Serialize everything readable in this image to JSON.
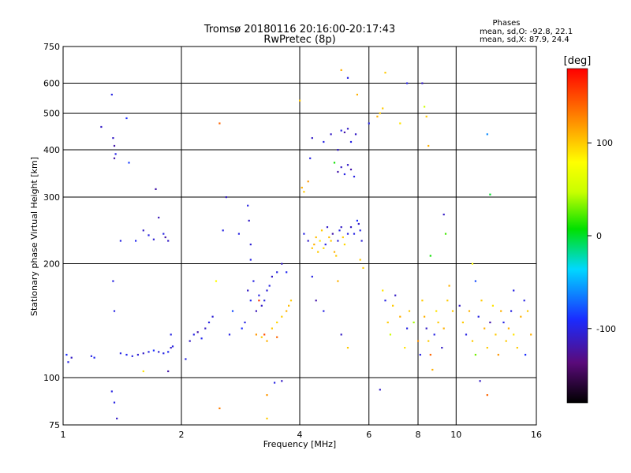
{
  "chart_data": {
    "type": "scatter",
    "title": "Tromsø 20180116 20:16:00-20:17:43",
    "subtitle": "RwPretec (8p)",
    "xlabel": "Frequency [MHz]",
    "ylabel": "Stationary phase Virtual Height [km]",
    "x_scale": "log",
    "y_scale": "log",
    "xlim": [
      1,
      16
    ],
    "ylim": [
      75,
      750
    ],
    "x_ticks": [
      "1",
      "2",
      "4",
      "6",
      "8",
      "10",
      "16"
    ],
    "y_ticks": [
      "75",
      "100",
      "200",
      "300",
      "400",
      "500",
      "600",
      "750"
    ],
    "grid": true,
    "phases_box": {
      "heading": "Phases",
      "line_o": "mean, sd,O: -92.8, 22.1",
      "line_x": "mean, sd,X:  87.9, 24.4"
    },
    "colorbar": {
      "label": "[deg]",
      "range": [
        -180,
        180
      ],
      "ticks": [
        "100",
        "0",
        "-100"
      ]
    },
    "point_color_encoding": "phase [deg]",
    "points": [
      [
        1.02,
        115,
        -90
      ],
      [
        1.03,
        110,
        -100
      ],
      [
        1.05,
        113,
        -110
      ],
      [
        1.18,
        114,
        -100
      ],
      [
        1.2,
        113,
        -95
      ],
      [
        1.25,
        460,
        -110
      ],
      [
        1.33,
        560,
        -100
      ],
      [
        1.34,
        430,
        -110
      ],
      [
        1.35,
        410,
        -120
      ],
      [
        1.36,
        390,
        -100
      ],
      [
        1.35,
        380,
        -120
      ],
      [
        1.4,
        230,
        -100
      ],
      [
        1.45,
        485,
        -90
      ],
      [
        1.47,
        370,
        -85
      ],
      [
        1.53,
        230,
        -95
      ],
      [
        1.6,
        245,
        -110
      ],
      [
        1.65,
        238,
        -100
      ],
      [
        1.7,
        232,
        -105
      ],
      [
        1.75,
        265,
        -115
      ],
      [
        1.8,
        240,
        -100
      ],
      [
        1.82,
        235,
        -120
      ],
      [
        1.85,
        230,
        -110
      ],
      [
        1.72,
        315,
        -120
      ],
      [
        1.34,
        180,
        -100
      ],
      [
        1.35,
        150,
        -100
      ],
      [
        1.33,
        92,
        -100
      ],
      [
        1.35,
        86,
        -100
      ],
      [
        1.37,
        78,
        -110
      ],
      [
        1.4,
        116,
        -100
      ],
      [
        1.45,
        115,
        -95
      ],
      [
        1.5,
        114,
        -100
      ],
      [
        1.55,
        115,
        -105
      ],
      [
        1.6,
        116,
        -110
      ],
      [
        1.65,
        117,
        -100
      ],
      [
        1.7,
        118,
        -90
      ],
      [
        1.75,
        117,
        -105
      ],
      [
        1.8,
        116,
        -100
      ],
      [
        1.85,
        117,
        -95
      ],
      [
        1.88,
        120,
        -110
      ],
      [
        1.9,
        121,
        -100
      ],
      [
        1.6,
        104,
        90
      ],
      [
        1.85,
        104,
        -120
      ],
      [
        1.88,
        130,
        -100
      ],
      [
        2.05,
        112,
        -100
      ],
      [
        2.1,
        125,
        -110
      ],
      [
        2.15,
        130,
        -100
      ],
      [
        2.2,
        132,
        -120
      ],
      [
        2.25,
        127,
        -95
      ],
      [
        2.3,
        135,
        -110
      ],
      [
        2.35,
        140,
        -100
      ],
      [
        2.4,
        145,
        -105
      ],
      [
        2.45,
        180,
        80
      ],
      [
        2.5,
        470,
        140
      ],
      [
        2.55,
        245,
        -100
      ],
      [
        2.6,
        300,
        -110
      ],
      [
        2.65,
        130,
        -100
      ],
      [
        2.7,
        150,
        -80
      ],
      [
        2.8,
        240,
        -100
      ],
      [
        2.85,
        135,
        -90
      ],
      [
        2.9,
        140,
        -100
      ],
      [
        2.95,
        170,
        -110
      ],
      [
        3.0,
        160,
        -95
      ],
      [
        3.05,
        180,
        -100
      ],
      [
        3.1,
        150,
        -115
      ],
      [
        3.15,
        165,
        -100
      ],
      [
        3.2,
        155,
        -110
      ],
      [
        3.25,
        160,
        -100
      ],
      [
        3.3,
        170,
        -105
      ],
      [
        3.35,
        175,
        -100
      ],
      [
        3.4,
        185,
        -110
      ],
      [
        3.5,
        190,
        -100
      ],
      [
        3.6,
        200,
        -110
      ],
      [
        3.7,
        190,
        -95
      ],
      [
        2.95,
        285,
        -100
      ],
      [
        2.97,
        260,
        -110
      ],
      [
        3.0,
        225,
        -105
      ],
      [
        3.0,
        205,
        -100
      ],
      [
        3.1,
        130,
        120
      ],
      [
        3.2,
        128,
        100
      ],
      [
        3.3,
        125,
        110
      ],
      [
        3.4,
        135,
        100
      ],
      [
        3.5,
        140,
        95
      ],
      [
        3.6,
        145,
        100
      ],
      [
        3.7,
        150,
        110
      ],
      [
        3.75,
        155,
        105
      ],
      [
        3.8,
        160,
        100
      ],
      [
        3.15,
        160,
        160
      ],
      [
        3.3,
        90,
        120
      ],
      [
        3.45,
        97,
        -100
      ],
      [
        3.6,
        98,
        -110
      ],
      [
        3.3,
        78,
        100
      ],
      [
        2.5,
        83,
        130
      ],
      [
        3.25,
        130,
        150
      ],
      [
        3.5,
        128,
        140
      ],
      [
        4.0,
        540,
        100
      ],
      [
        4.05,
        318,
        110
      ],
      [
        4.1,
        310,
        100
      ],
      [
        4.2,
        330,
        120
      ],
      [
        4.25,
        380,
        -100
      ],
      [
        4.3,
        430,
        -110
      ],
      [
        4.1,
        240,
        -100
      ],
      [
        4.2,
        230,
        -110
      ],
      [
        4.3,
        220,
        100
      ],
      [
        4.35,
        225,
        110
      ],
      [
        4.4,
        235,
        105
      ],
      [
        4.45,
        215,
        100
      ],
      [
        4.5,
        230,
        90
      ],
      [
        4.55,
        245,
        100
      ],
      [
        4.6,
        220,
        95
      ],
      [
        4.65,
        225,
        -100
      ],
      [
        4.7,
        250,
        -110
      ],
      [
        4.75,
        235,
        105
      ],
      [
        4.8,
        230,
        100
      ],
      [
        4.85,
        240,
        -120
      ],
      [
        4.9,
        215,
        110
      ],
      [
        4.95,
        210,
        100
      ],
      [
        5.0,
        230,
        -105
      ],
      [
        5.05,
        245,
        -100
      ],
      [
        5.1,
        250,
        -110
      ],
      [
        5.15,
        235,
        100
      ],
      [
        5.2,
        225,
        95
      ],
      [
        5.3,
        240,
        -100
      ],
      [
        5.4,
        250,
        -110
      ],
      [
        5.5,
        240,
        -100
      ],
      [
        5.6,
        260,
        -90
      ],
      [
        5.65,
        255,
        -110
      ],
      [
        5.7,
        245,
        -100
      ],
      [
        5.75,
        230,
        -105
      ],
      [
        5.8,
        195,
        100
      ],
      [
        5.7,
        205,
        100
      ],
      [
        4.6,
        420,
        -100
      ],
      [
        4.8,
        440,
        -110
      ],
      [
        5.0,
        400,
        -110
      ],
      [
        5.1,
        450,
        -100
      ],
      [
        5.2,
        445,
        -120
      ],
      [
        5.3,
        455,
        -110
      ],
      [
        5.4,
        420,
        -100
      ],
      [
        5.55,
        440,
        -110
      ],
      [
        5.0,
        350,
        -120
      ],
      [
        5.1,
        360,
        -110
      ],
      [
        5.2,
        345,
        -100
      ],
      [
        5.3,
        365,
        -110
      ],
      [
        5.4,
        355,
        -120
      ],
      [
        5.5,
        340,
        -100
      ],
      [
        4.9,
        370,
        10
      ],
      [
        5.3,
        620,
        -100
      ],
      [
        5.1,
        650,
        110
      ],
      [
        5.6,
        560,
        110
      ],
      [
        4.3,
        185,
        -100
      ],
      [
        4.4,
        160,
        -120
      ],
      [
        4.6,
        150,
        -100
      ],
      [
        5.1,
        130,
        -110
      ],
      [
        5.3,
        120,
        100
      ],
      [
        5.0,
        180,
        110
      ],
      [
        6.0,
        470,
        -100
      ],
      [
        6.3,
        490,
        110
      ],
      [
        6.4,
        500,
        100
      ],
      [
        6.5,
        515,
        100
      ],
      [
        6.6,
        640,
        100
      ],
      [
        7.2,
        470,
        90
      ],
      [
        7.5,
        600,
        -100
      ],
      [
        8.2,
        600,
        -110
      ],
      [
        8.3,
        520,
        50
      ],
      [
        8.4,
        490,
        100
      ],
      [
        8.5,
        410,
        110
      ],
      [
        9.3,
        270,
        -110
      ],
      [
        9.4,
        240,
        20
      ],
      [
        8.6,
        210,
        10
      ],
      [
        6.4,
        93,
        -110
      ],
      [
        6.5,
        170,
        90
      ],
      [
        6.6,
        160,
        -100
      ],
      [
        6.7,
        140,
        100
      ],
      [
        6.8,
        130,
        50
      ],
      [
        6.9,
        155,
        100
      ],
      [
        7.0,
        165,
        -110
      ],
      [
        7.2,
        145,
        110
      ],
      [
        7.4,
        120,
        90
      ],
      [
        7.5,
        135,
        -100
      ],
      [
        7.6,
        150,
        100
      ],
      [
        7.8,
        140,
        40
      ],
      [
        8.0,
        125,
        120
      ],
      [
        8.1,
        115,
        -100
      ],
      [
        8.2,
        160,
        100
      ],
      [
        8.3,
        145,
        110
      ],
      [
        8.4,
        135,
        -110
      ],
      [
        8.5,
        125,
        100
      ],
      [
        8.6,
        115,
        140
      ],
      [
        8.7,
        105,
        110
      ],
      [
        8.8,
        130,
        -100
      ],
      [
        8.9,
        150,
        90
      ],
      [
        9.0,
        140,
        100
      ],
      [
        9.2,
        120,
        -110
      ],
      [
        9.3,
        135,
        110
      ],
      [
        9.5,
        160,
        100
      ],
      [
        9.6,
        175,
        110
      ],
      [
        9.8,
        150,
        100
      ],
      [
        10.2,
        155,
        -110
      ],
      [
        10.4,
        140,
        100
      ],
      [
        10.6,
        130,
        -100
      ],
      [
        10.8,
        150,
        110
      ],
      [
        11.0,
        125,
        100
      ],
      [
        11.2,
        115,
        30
      ],
      [
        11.4,
        145,
        -100
      ],
      [
        11.6,
        160,
        100
      ],
      [
        11.8,
        135,
        110
      ],
      [
        12.0,
        120,
        100
      ],
      [
        12.2,
        140,
        -120
      ],
      [
        12.4,
        155,
        90
      ],
      [
        12.6,
        130,
        100
      ],
      [
        12.8,
        115,
        120
      ],
      [
        13.0,
        150,
        110
      ],
      [
        13.2,
        140,
        -100
      ],
      [
        13.4,
        125,
        100
      ],
      [
        13.6,
        135,
        110
      ],
      [
        13.8,
        150,
        -100
      ],
      [
        14.0,
        130,
        90
      ],
      [
        14.3,
        120,
        100
      ],
      [
        14.6,
        145,
        110
      ],
      [
        14.9,
        160,
        -100
      ],
      [
        15.2,
        150,
        100
      ],
      [
        15.5,
        130,
        110
      ],
      [
        11.5,
        98,
        -110
      ],
      [
        12.0,
        440,
        -60
      ],
      [
        12.2,
        305,
        0
      ],
      [
        12.0,
        90,
        140
      ],
      [
        11.0,
        200,
        80
      ],
      [
        11.2,
        180,
        -80
      ],
      [
        14.0,
        170,
        -100
      ],
      [
        15.0,
        115,
        -90
      ]
    ]
  }
}
